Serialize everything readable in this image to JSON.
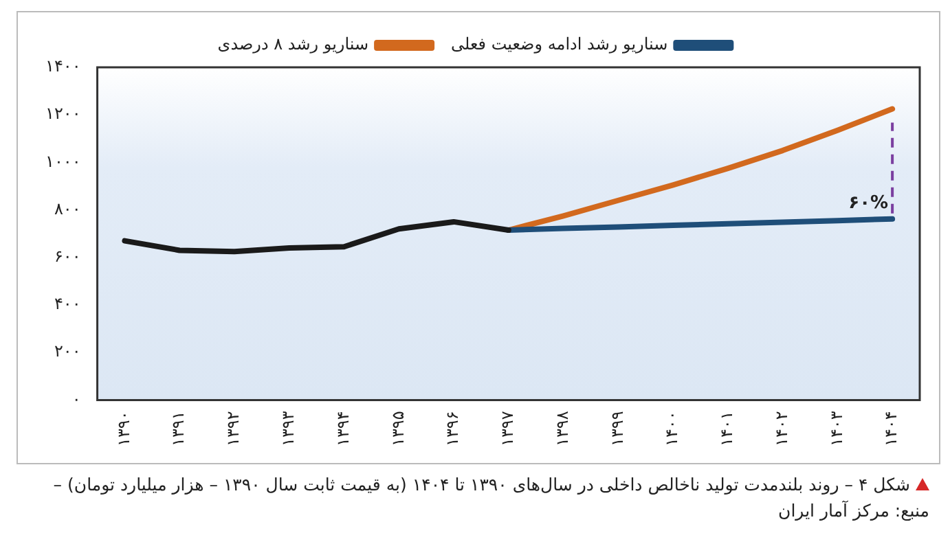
{
  "chart_data": {
    "type": "line",
    "title": "شکل ۴ – روند بلندمدت تولید ناخالص داخلی در سال‌های ۱۳۹۰ تا ۱۴۰۴ (به قیمت ثابت سال ۱۳۹۰ – هزار میلیارد تومان) – منبع: مرکز آمار ایران",
    "categories": [
      "۱۳۹۰",
      "۱۳۹۱",
      "۱۳۹۲",
      "۱۳۹۳",
      "۱۳۹۴",
      "۱۳۹۵",
      "۱۳۹۶",
      "۱۳۹۷",
      "۱۳۹۸",
      "۱۳۹۹",
      "۱۴۰۰",
      "۱۴۰۱",
      "۱۴۰۲",
      "۱۴۰۳",
      "۱۴۰۴"
    ],
    "series": [
      {
        "color": "#1a1a1a",
        "values": [
          670,
          630,
          625,
          640,
          645,
          720,
          750,
          715,
          null,
          null,
          null,
          null,
          null,
          null,
          null
        ]
      },
      {
        "name": "سناریو رشد ادامه وضعیت فعلی",
        "color": "#1f4e79",
        "values": [
          null,
          null,
          null,
          null,
          null,
          null,
          null,
          715,
          722,
          728,
          735,
          742,
          748,
          755,
          762
        ]
      },
      {
        "name": "سناریو رشد ۸ درصدی",
        "color": "#d2691e",
        "values": [
          null,
          null,
          null,
          null,
          null,
          null,
          null,
          715,
          775,
          840,
          905,
          975,
          1050,
          1135,
          1225
        ]
      }
    ],
    "ylim": [
      0,
      1400
    ],
    "yticks": [
      {
        "value": 0,
        "label": "۰"
      },
      {
        "value": 200,
        "label": "۲۰۰"
      },
      {
        "value": 400,
        "label": "۴۰۰"
      },
      {
        "value": 600,
        "label": "۶۰۰"
      },
      {
        "value": 800,
        "label": "۸۰۰"
      },
      {
        "value": 1000,
        "label": "۱۰۰۰"
      },
      {
        "value": 1200,
        "label": "۱۲۰۰"
      },
      {
        "value": 1400,
        "label": "۱۴۰۰"
      }
    ],
    "annotations": [
      {
        "text": "۶۰%",
        "x": "۱۴۰۴",
        "y": 762
      }
    ],
    "grid": false,
    "legend": "top",
    "marker": "none",
    "line_style": "solid"
  }
}
